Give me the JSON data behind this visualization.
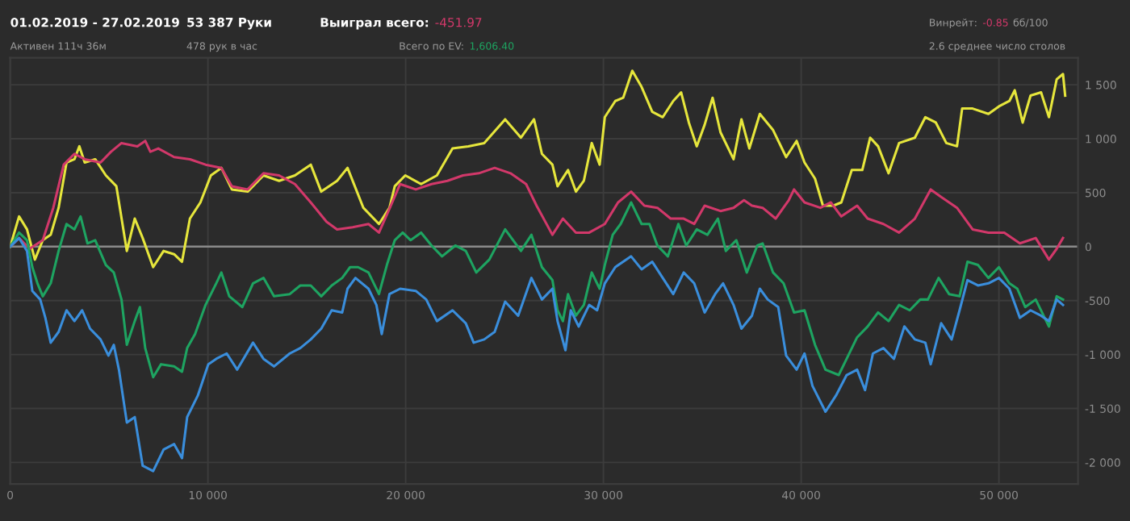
{
  "chart_data": {
    "type": "line",
    "annotations": [
      "01.02.2019 - 27.02.2019",
      "Активен 111ч 36м",
      "53 387 Руки",
      "478 рук в час",
      "Выиграл всего:",
      "-451.97",
      "Всего по EV:",
      "1,606.40",
      "Винрейт:",
      "-0.85",
      "бб/100",
      "2.6 среднее число столов"
    ],
    "xlim": [
      0,
      54000
    ],
    "ylim": [
      -2200,
      1750
    ],
    "xticks": [
      0,
      {
        "value": 10000,
        "label": "10 000"
      },
      {
        "value": 20000,
        "label": "20 000"
      },
      {
        "value": 30000,
        "label": "30 000"
      },
      {
        "value": 40000,
        "label": "40 000"
      },
      {
        "value": 50000,
        "label": "50 000"
      }
    ],
    "yticks": [
      {
        "value": -2000,
        "label": "-2 000"
      },
      {
        "value": -1500,
        "label": "-1 500"
      },
      {
        "value": -1000,
        "label": "-1 000"
      },
      -500,
      0,
      500,
      {
        "value": 1000,
        "label": "1 000"
      },
      {
        "value": 1500,
        "label": "1 500"
      }
    ],
    "grid": true,
    "marker": "none",
    "line_style": "solid",
    "ref_lines": [
      {
        "axis": "y",
        "value": 0,
        "color": "#8a8a8a"
      }
    ],
    "series": [
      {
        "color": "#e6e63c",
        "x": [
          0,
          450,
          850,
          1250,
          1650,
          2050,
          2450,
          2850,
          3250,
          3500,
          3770,
          4300,
          4840,
          5370,
          5900,
          6300,
          6700,
          7230,
          7760,
          8290,
          8690,
          9090,
          9620,
          10150,
          10680,
          11210,
          12010,
          12810,
          13600,
          14400,
          15200,
          15730,
          16530,
          17060,
          17860,
          18650,
          19180,
          19450,
          19980,
          20780,
          21580,
          22370,
          23170,
          23970,
          25030,
          25830,
          26490,
          26890,
          27420,
          27680,
          28210,
          28610,
          29010,
          29410,
          29810,
          30070,
          30600,
          31000,
          31460,
          31930,
          32470,
          33000,
          33530,
          33930,
          34320,
          34720,
          35120,
          35520,
          35920,
          36580,
          36980,
          37380,
          37910,
          38580,
          39240,
          39770,
          40170,
          40700,
          41100,
          41630,
          42030,
          42560,
          43090,
          43490,
          43890,
          44420,
          44950,
          45750,
          46280,
          46810,
          47340,
          47880,
          48140,
          48670,
          49470,
          50000,
          50530,
          50800,
          51200,
          51600,
          52130,
          52530,
          52920,
          53240,
          53350
        ],
        "values": [
          0,
          280,
          160,
          -120,
          60,
          110,
          360,
          780,
          810,
          930,
          780,
          810,
          660,
          560,
          -40,
          260,
          80,
          -190,
          -40,
          -70,
          -140,
          260,
          410,
          660,
          730,
          530,
          510,
          660,
          610,
          660,
          760,
          510,
          610,
          730,
          360,
          210,
          360,
          560,
          660,
          580,
          660,
          910,
          930,
          960,
          1180,
          1010,
          1180,
          860,
          760,
          560,
          710,
          510,
          610,
          960,
          760,
          1200,
          1350,
          1380,
          1630,
          1480,
          1250,
          1200,
          1350,
          1430,
          1150,
          930,
          1130,
          1380,
          1060,
          810,
          1180,
          910,
          1230,
          1080,
          830,
          980,
          780,
          630,
          380,
          380,
          410,
          710,
          710,
          1010,
          930,
          680,
          960,
          1010,
          1200,
          1150,
          960,
          930,
          1280,
          1280,
          1230,
          1300,
          1350,
          1450,
          1150,
          1400,
          1430,
          1200,
          1550,
          1600,
          1400
        ]
      },
      {
        "color": "#d2386a",
        "x": [
          0,
          450,
          980,
          1650,
          2180,
          2710,
          3250,
          3770,
          4570,
          5100,
          5630,
          6430,
          6830,
          7090,
          7490,
          8290,
          9090,
          9880,
          10680,
          11210,
          12010,
          12810,
          13600,
          14400,
          15200,
          16000,
          16530,
          17320,
          18120,
          18650,
          19320,
          19720,
          20510,
          21310,
          22110,
          22900,
          23700,
          24500,
          25300,
          26090,
          26620,
          27420,
          27950,
          28610,
          29280,
          30070,
          30740,
          31400,
          32070,
          32730,
          33400,
          34060,
          34590,
          35120,
          35920,
          36580,
          37110,
          37510,
          38050,
          38710,
          39370,
          39640,
          40170,
          40970,
          41500,
          42030,
          42830,
          43360,
          44160,
          44950,
          45750,
          46550,
          47080,
          47880,
          48670,
          49470,
          50270,
          51060,
          51860,
          52530,
          52920,
          53240
        ],
        "values": [
          0,
          80,
          -20,
          60,
          360,
          760,
          860,
          810,
          780,
          880,
          960,
          930,
          980,
          880,
          910,
          830,
          810,
          760,
          730,
          560,
          530,
          680,
          660,
          580,
          410,
          230,
          160,
          180,
          210,
          130,
          410,
          580,
          530,
          580,
          610,
          660,
          680,
          730,
          680,
          580,
          380,
          110,
          260,
          130,
          130,
          210,
          410,
          510,
          380,
          360,
          260,
          260,
          210,
          380,
          330,
          360,
          430,
          380,
          360,
          260,
          430,
          530,
          410,
          360,
          410,
          280,
          380,
          260,
          210,
          130,
          260,
          530,
          460,
          360,
          160,
          130,
          130,
          30,
          80,
          -120,
          -20,
          80
        ]
      },
      {
        "color": "#1ea461",
        "x": [
          0,
          450,
          850,
          1120,
          1380,
          1650,
          2050,
          2450,
          2850,
          3250,
          3560,
          3910,
          4300,
          4840,
          5240,
          5630,
          5900,
          6300,
          6560,
          6830,
          7230,
          7630,
          8290,
          8690,
          8950,
          9350,
          9880,
          10420,
          10680,
          11080,
          11740,
          12280,
          12810,
          13340,
          14140,
          14670,
          15200,
          15730,
          16260,
          16790,
          17190,
          17590,
          18120,
          18650,
          19050,
          19450,
          19850,
          20250,
          20780,
          21310,
          21840,
          22510,
          23040,
          23570,
          24230,
          25030,
          25830,
          26360,
          26890,
          27420,
          27680,
          27950,
          28210,
          28610,
          29010,
          29410,
          29810,
          30070,
          30470,
          30870,
          31400,
          31930,
          32330,
          32730,
          33260,
          33790,
          34190,
          34720,
          35260,
          35790,
          36190,
          36720,
          37250,
          37780,
          38050,
          38580,
          39110,
          39640,
          40170,
          40700,
          41230,
          41900,
          42300,
          42830,
          43360,
          43890,
          44420,
          44950,
          45490,
          46020,
          46410,
          46950,
          47480,
          48010,
          48410,
          48940,
          49470,
          50000,
          50530,
          50930,
          51330,
          51860,
          52530,
          52920,
          53240
        ],
        "values": [
          0,
          130,
          60,
          -190,
          -340,
          -460,
          -340,
          -40,
          210,
          160,
          280,
          30,
          60,
          -170,
          -240,
          -490,
          -910,
          -690,
          -560,
          -940,
          -1210,
          -1090,
          -1110,
          -1160,
          -940,
          -810,
          -540,
          -340,
          -240,
          -460,
          -560,
          -340,
          -290,
          -460,
          -440,
          -360,
          -360,
          -460,
          -360,
          -290,
          -190,
          -190,
          -240,
          -440,
          -170,
          60,
          130,
          60,
          130,
          10,
          -90,
          10,
          -40,
          -240,
          -120,
          160,
          -40,
          110,
          -190,
          -310,
          -590,
          -690,
          -440,
          -640,
          -540,
          -240,
          -390,
          -170,
          110,
          210,
          410,
          210,
          210,
          10,
          -90,
          210,
          10,
          160,
          110,
          260,
          -40,
          60,
          -240,
          10,
          30,
          -240,
          -340,
          -610,
          -590,
          -910,
          -1140,
          -1190,
          -1040,
          -840,
          -740,
          -610,
          -690,
          -540,
          -590,
          -490,
          -490,
          -290,
          -440,
          -460,
          -140,
          -170,
          -290,
          -190,
          -340,
          -390,
          -560,
          -490,
          -740,
          -460,
          -490
        ]
      },
      {
        "color": "#3a8edc",
        "x": [
          0,
          450,
          850,
          1120,
          1520,
          1780,
          2050,
          2450,
          2850,
          3250,
          3640,
          4040,
          4570,
          4970,
          5240,
          5500,
          5900,
          6300,
          6700,
          7230,
          7760,
          8290,
          8690,
          8950,
          9490,
          10020,
          10420,
          10950,
          11480,
          12280,
          12810,
          13340,
          14140,
          14670,
          15200,
          15730,
          16260,
          16790,
          17060,
          17460,
          18120,
          18520,
          18790,
          19180,
          19720,
          20510,
          21040,
          21580,
          22370,
          23040,
          23440,
          23970,
          24500,
          25030,
          25690,
          26360,
          26890,
          27420,
          27680,
          28080,
          28350,
          28750,
          29280,
          29680,
          30070,
          30600,
          31400,
          31930,
          32470,
          33000,
          33530,
          34060,
          34590,
          35120,
          35650,
          36050,
          36580,
          36980,
          37510,
          37910,
          38310,
          38840,
          39240,
          39770,
          40170,
          40570,
          41230,
          41760,
          42300,
          42830,
          43230,
          43630,
          44160,
          44690,
          45220,
          45750,
          46280,
          46550,
          47080,
          47610,
          48010,
          48410,
          48940,
          49470,
          50000,
          50530,
          51060,
          51600,
          52130,
          52530,
          52920,
          53240
        ],
        "values": [
          0,
          80,
          -40,
          -410,
          -490,
          -660,
          -890,
          -790,
          -590,
          -690,
          -590,
          -760,
          -860,
          -1010,
          -910,
          -1140,
          -1630,
          -1580,
          -2030,
          -2080,
          -1880,
          -1830,
          -1960,
          -1580,
          -1380,
          -1090,
          -1040,
          -990,
          -1140,
          -890,
          -1040,
          -1110,
          -990,
          -940,
          -860,
          -760,
          -590,
          -610,
          -390,
          -290,
          -390,
          -540,
          -810,
          -440,
          -390,
          -410,
          -490,
          -690,
          -590,
          -710,
          -890,
          -860,
          -790,
          -510,
          -640,
          -290,
          -490,
          -390,
          -690,
          -960,
          -590,
          -740,
          -540,
          -590,
          -340,
          -190,
          -90,
          -210,
          -140,
          -290,
          -440,
          -240,
          -340,
          -610,
          -440,
          -340,
          -540,
          -760,
          -640,
          -390,
          -490,
          -560,
          -1010,
          -1140,
          -990,
          -1290,
          -1530,
          -1380,
          -1190,
          -1140,
          -1330,
          -990,
          -940,
          -1040,
          -740,
          -860,
          -890,
          -1090,
          -710,
          -860,
          -590,
          -310,
          -360,
          -340,
          -290,
          -390,
          -660,
          -590,
          -640,
          -690,
          -490,
          -540
        ]
      }
    ]
  }
}
